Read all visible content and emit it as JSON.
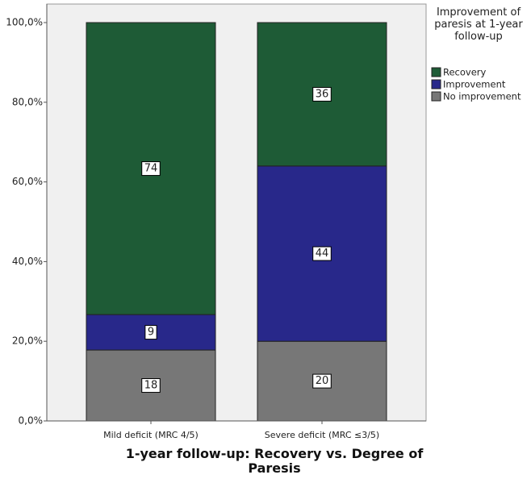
{
  "chart_data": {
    "type": "stacked-bar",
    "x_label": "1-year follow-up: Recovery vs. Degree of Paresis",
    "legend_title": "Improvement of paresis at 1-year follow-up",
    "legend_position": "upper right",
    "categories": [
      "Mild deficit (MRC 4/5)",
      "Severe deficit (MRC ≤3/5)"
    ],
    "series": [
      {
        "name": "No improvement",
        "color": "#777777",
        "values": [
          17.8,
          20
        ],
        "counts": [
          18,
          20
        ]
      },
      {
        "name": "Improvement",
        "color": "#28288a",
        "values": [
          8.9,
          44
        ],
        "counts": [
          9,
          44
        ]
      },
      {
        "name": "Recovery",
        "color": "#1e5b36",
        "values": [
          73.3,
          36
        ],
        "counts": [
          74,
          36
        ]
      }
    ],
    "ylim": [
      0,
      100
    ],
    "yticks": [
      {
        "value": 0,
        "label": "0,0%"
      },
      {
        "value": 20,
        "label": "20,0%"
      },
      {
        "value": 40,
        "label": "40,0%"
      },
      {
        "value": 60,
        "label": "60,0%"
      },
      {
        "value": 80,
        "label": "80,0%"
      },
      {
        "value": 100,
        "label": "100,0%"
      }
    ]
  }
}
